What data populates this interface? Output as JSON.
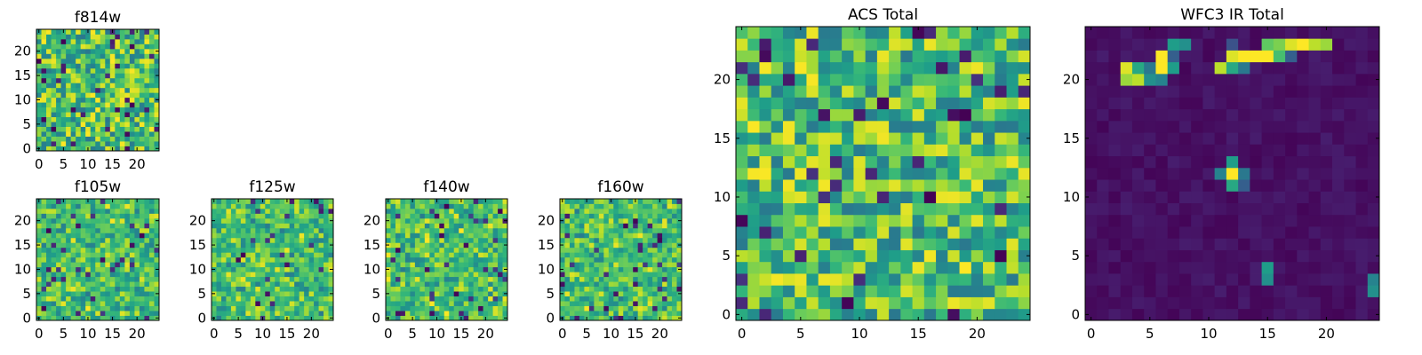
{
  "chart_data": [
    {
      "type": "heatmap",
      "title": "f814w",
      "xticks": [
        0,
        5,
        10,
        15,
        20
      ],
      "yticks": [
        0,
        5,
        10,
        15,
        20
      ],
      "xlim": [
        0,
        25
      ],
      "ylim": [
        0,
        25
      ],
      "grid_size": 25,
      "colormap": "viridis",
      "character": "uniform-noise",
      "seed": 11
    },
    {
      "type": "heatmap",
      "title": "f105w",
      "xticks": [
        0,
        5,
        10,
        15,
        20
      ],
      "yticks": [
        0,
        5,
        10,
        15,
        20
      ],
      "xlim": [
        0,
        25
      ],
      "ylim": [
        0,
        25
      ],
      "grid_size": 25,
      "colormap": "viridis",
      "character": "smooth-noise",
      "seed": 23
    },
    {
      "type": "heatmap",
      "title": "f125w",
      "xticks": [
        0,
        5,
        10,
        15,
        20
      ],
      "yticks": [
        0,
        5,
        10,
        15,
        20
      ],
      "xlim": [
        0,
        25
      ],
      "ylim": [
        0,
        25
      ],
      "grid_size": 25,
      "colormap": "viridis",
      "character": "smooth-noise",
      "seed": 37
    },
    {
      "type": "heatmap",
      "title": "f140w",
      "xticks": [
        0,
        5,
        10,
        15,
        20
      ],
      "yticks": [
        0,
        5,
        10,
        15,
        20
      ],
      "xlim": [
        0,
        25
      ],
      "ylim": [
        0,
        25
      ],
      "grid_size": 25,
      "colormap": "viridis",
      "character": "smooth-noise",
      "seed": 41
    },
    {
      "type": "heatmap",
      "title": "f160w",
      "xticks": [
        0,
        5,
        10,
        15,
        20
      ],
      "yticks": [
        0,
        5,
        10,
        15,
        20
      ],
      "xlim": [
        0,
        25
      ],
      "ylim": [
        0,
        25
      ],
      "grid_size": 25,
      "colormap": "viridis",
      "character": "smooth-noise",
      "seed": 53
    },
    {
      "type": "heatmap",
      "title": "ACS Total",
      "xticks": [
        0,
        5,
        10,
        15,
        20
      ],
      "yticks": [
        0,
        5,
        10,
        15,
        20
      ],
      "xlim": [
        0,
        25
      ],
      "ylim": [
        0,
        25
      ],
      "grid_size": 25,
      "colormap": "viridis",
      "character": "uniform-noise",
      "seed": 67
    },
    {
      "type": "heatmap",
      "title": "WFC3 IR Total",
      "xticks": [
        0,
        5,
        10,
        15,
        20
      ],
      "yticks": [
        0,
        5,
        10,
        15,
        20
      ],
      "xlim": [
        0,
        25
      ],
      "ylim": [
        0,
        25
      ],
      "grid_size": 25,
      "colormap": "viridis",
      "character": "dark-background-with-sources",
      "seed": 79,
      "bright_pixels": [
        {
          "x": 7,
          "y": 23,
          "v": 0.55
        },
        {
          "x": 8,
          "y": 23,
          "v": 0.5
        },
        {
          "x": 12,
          "y": 23,
          "v": 0.25
        },
        {
          "x": 15,
          "y": 23,
          "v": 0.75
        },
        {
          "x": 16,
          "y": 23,
          "v": 0.8
        },
        {
          "x": 17,
          "y": 23,
          "v": 0.95
        },
        {
          "x": 18,
          "y": 23,
          "v": 1.0
        },
        {
          "x": 19,
          "y": 23,
          "v": 0.9
        },
        {
          "x": 20,
          "y": 23,
          "v": 0.85
        },
        {
          "x": 6,
          "y": 22,
          "v": 1.0
        },
        {
          "x": 12,
          "y": 22,
          "v": 0.95
        },
        {
          "x": 13,
          "y": 22,
          "v": 1.0
        },
        {
          "x": 14,
          "y": 22,
          "v": 1.0
        },
        {
          "x": 15,
          "y": 22,
          "v": 1.0
        },
        {
          "x": 16,
          "y": 22,
          "v": 0.7
        },
        {
          "x": 3,
          "y": 21,
          "v": 0.95
        },
        {
          "x": 4,
          "y": 21,
          "v": 0.6
        },
        {
          "x": 5,
          "y": 21,
          "v": 0.4
        },
        {
          "x": 6,
          "y": 21,
          "v": 1.0
        },
        {
          "x": 7,
          "y": 21,
          "v": 0.55
        },
        {
          "x": 11,
          "y": 21,
          "v": 0.9
        },
        {
          "x": 12,
          "y": 21,
          "v": 0.6
        },
        {
          "x": 13,
          "y": 21,
          "v": 0.4
        },
        {
          "x": 3,
          "y": 20,
          "v": 0.85
        },
        {
          "x": 4,
          "y": 20,
          "v": 0.9
        },
        {
          "x": 5,
          "y": 20,
          "v": 0.5
        },
        {
          "x": 6,
          "y": 20,
          "v": 0.45
        },
        {
          "x": 12,
          "y": 12,
          "v": 1.0
        },
        {
          "x": 11,
          "y": 12,
          "v": 0.45
        },
        {
          "x": 12,
          "y": 13,
          "v": 0.55
        },
        {
          "x": 12,
          "y": 11,
          "v": 0.6
        },
        {
          "x": 13,
          "y": 12,
          "v": 0.4
        },
        {
          "x": 13,
          "y": 11,
          "v": 0.3
        },
        {
          "x": 15,
          "y": 4,
          "v": 0.55
        },
        {
          "x": 15,
          "y": 3,
          "v": 0.5
        },
        {
          "x": 24,
          "y": 3,
          "v": 0.45
        },
        {
          "x": 24,
          "y": 2,
          "v": 0.5
        },
        {
          "x": 7,
          "y": 22,
          "v": 0.3
        },
        {
          "x": 17,
          "y": 22,
          "v": 0.3
        }
      ]
    }
  ]
}
